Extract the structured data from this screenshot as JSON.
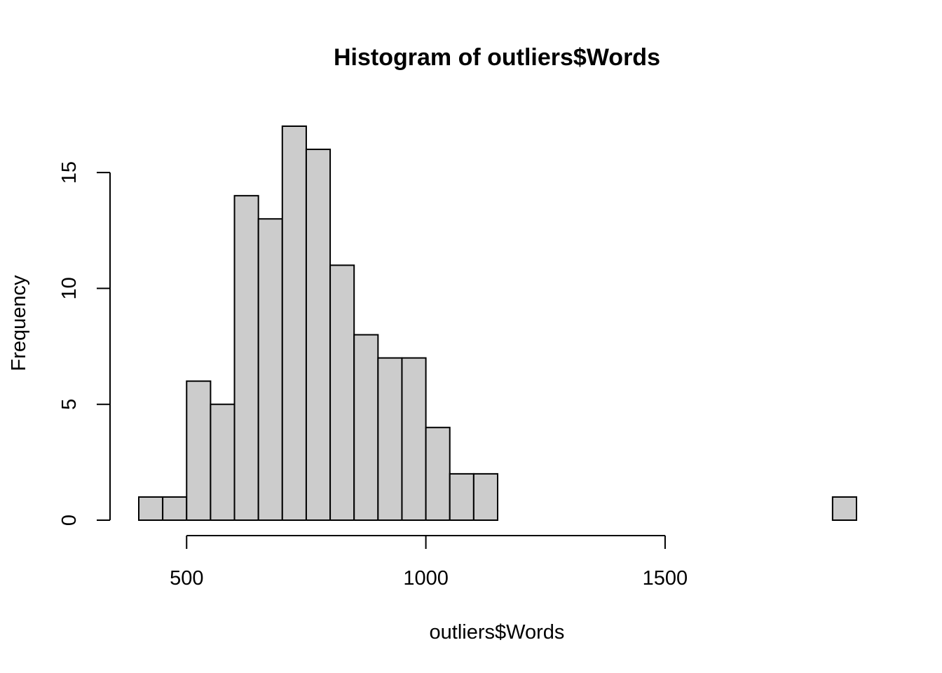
{
  "chart_data": {
    "type": "bar",
    "subtype": "histogram",
    "title": "Histogram of outliers$Words",
    "xlabel": "outliers$Words",
    "ylabel": "Frequency",
    "bin_width": 50,
    "bins": [
      {
        "start": 400,
        "end": 450,
        "count": 1
      },
      {
        "start": 450,
        "end": 500,
        "count": 1
      },
      {
        "start": 500,
        "end": 550,
        "count": 6
      },
      {
        "start": 550,
        "end": 600,
        "count": 5
      },
      {
        "start": 600,
        "end": 650,
        "count": 14
      },
      {
        "start": 650,
        "end": 700,
        "count": 13
      },
      {
        "start": 700,
        "end": 750,
        "count": 17
      },
      {
        "start": 750,
        "end": 800,
        "count": 16
      },
      {
        "start": 800,
        "end": 850,
        "count": 11
      },
      {
        "start": 850,
        "end": 900,
        "count": 8
      },
      {
        "start": 900,
        "end": 950,
        "count": 7
      },
      {
        "start": 950,
        "end": 1000,
        "count": 7
      },
      {
        "start": 1000,
        "end": 1050,
        "count": 4
      },
      {
        "start": 1050,
        "end": 1100,
        "count": 2
      },
      {
        "start": 1100,
        "end": 1150,
        "count": 2
      },
      {
        "start": 1150,
        "end": 1200,
        "count": 0
      },
      {
        "start": 1200,
        "end": 1250,
        "count": 0
      },
      {
        "start": 1250,
        "end": 1300,
        "count": 0
      },
      {
        "start": 1300,
        "end": 1350,
        "count": 0
      },
      {
        "start": 1350,
        "end": 1400,
        "count": 0
      },
      {
        "start": 1400,
        "end": 1450,
        "count": 0
      },
      {
        "start": 1450,
        "end": 1500,
        "count": 0
      },
      {
        "start": 1500,
        "end": 1550,
        "count": 0
      },
      {
        "start": 1550,
        "end": 1600,
        "count": 0
      },
      {
        "start": 1600,
        "end": 1650,
        "count": 0
      },
      {
        "start": 1650,
        "end": 1700,
        "count": 0
      },
      {
        "start": 1700,
        "end": 1750,
        "count": 0
      },
      {
        "start": 1750,
        "end": 1800,
        "count": 0
      },
      {
        "start": 1800,
        "end": 1850,
        "count": 0
      },
      {
        "start": 1850,
        "end": 1900,
        "count": 1
      }
    ],
    "x_ticks": [
      500,
      1000,
      1500
    ],
    "y_ticks": [
      0,
      5,
      10,
      15
    ],
    "xlim": [
      400,
      1900
    ],
    "ylim": [
      0,
      17
    ],
    "bar_fill": "#cccccc",
    "bar_stroke": "#000000",
    "grid": false,
    "legend": "none"
  }
}
